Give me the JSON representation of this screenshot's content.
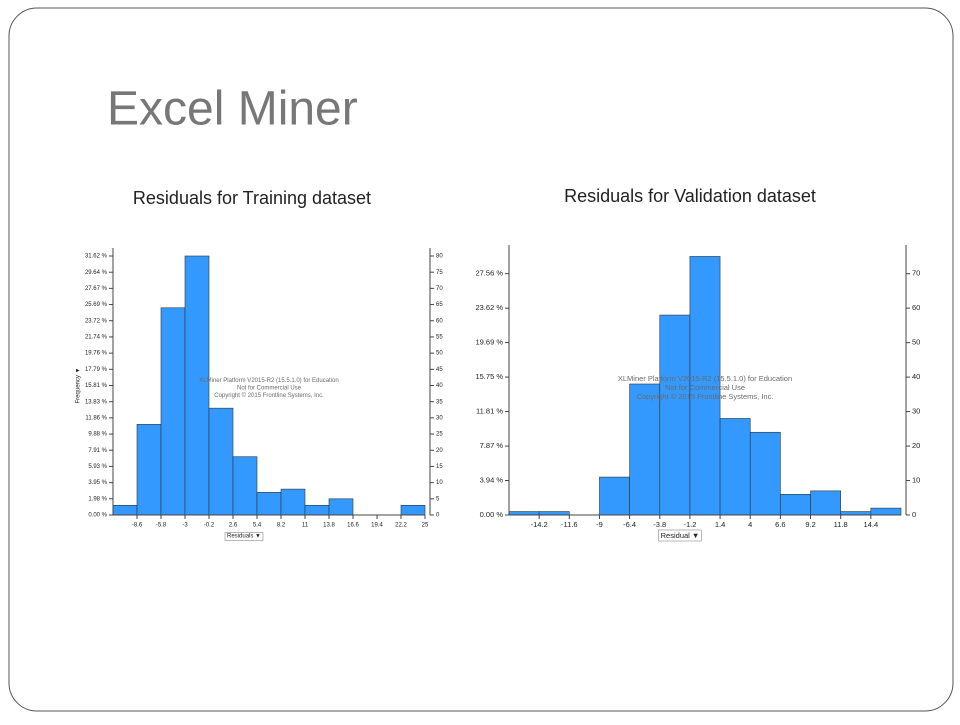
{
  "title": "Excel Miner",
  "chart_data": [
    {
      "type": "histogram",
      "title": "Residuals for Training dataset",
      "color": "#3399ff",
      "x_label": "Residuals ▼",
      "y_label": "Frequency ▼",
      "bins": [
        -11.4,
        -8.6,
        -5.8,
        -3,
        -0.2,
        2.6,
        5.4,
        8.2,
        11,
        13.8,
        16.6,
        19.4,
        22.2,
        25
      ],
      "values": [
        3,
        28,
        64,
        80,
        33,
        18,
        7,
        8,
        3,
        5,
        0,
        0,
        3
      ],
      "xlim": [
        -11.4,
        25
      ],
      "xticks": [
        -8.6,
        -5.8,
        -3,
        -0.2,
        2.6,
        5.4,
        8.2,
        11,
        13.8,
        16.6,
        19.4,
        22.2,
        25
      ],
      "ylim": [
        0,
        80
      ],
      "yticks": [
        0,
        5,
        10,
        15,
        20,
        25,
        30,
        35,
        40,
        45,
        50,
        55,
        60,
        65,
        70,
        75,
        80
      ],
      "y2lim": [
        0,
        31.62
      ],
      "y2ticks": [
        {
          "value": 0,
          "label": "0.00 %"
        },
        {
          "value": 1.98,
          "label": "1.98 %"
        },
        {
          "value": 3.95,
          "label": "3.95 %"
        },
        {
          "value": 5.93,
          "label": "5.93 %"
        },
        {
          "value": 7.91,
          "label": "7.91 %"
        },
        {
          "value": 9.88,
          "label": "9.88 %"
        },
        {
          "value": 11.86,
          "label": "11.86 %"
        },
        {
          "value": 13.83,
          "label": "13.83 %"
        },
        {
          "value": 15.81,
          "label": "15.81 %"
        },
        {
          "value": 17.79,
          "label": "17.79 %"
        },
        {
          "value": 19.76,
          "label": "19.76 %"
        },
        {
          "value": 21.74,
          "label": "21.74 %"
        },
        {
          "value": 23.72,
          "label": "23.72 %"
        },
        {
          "value": 25.69,
          "label": "25.69 %"
        },
        {
          "value": 27.67,
          "label": "27.67 %"
        },
        {
          "value": 29.64,
          "label": "29.64 %"
        },
        {
          "value": 31.62,
          "label": "31.62 %"
        }
      ],
      "annotations": [
        "XLMiner Platform V2015-R2 (15.5.1.0) for Education",
        "Not for Commercial Use",
        "Copyright © 2015 Frontline Systems, Inc."
      ]
    },
    {
      "type": "histogram",
      "title": "Residuals for Validation dataset",
      "color": "#3399ff",
      "x_label": "Residual ▼",
      "bins": [
        -16.8,
        -14.2,
        -11.6,
        -9,
        -6.4,
        -3.8,
        -1.2,
        1.4,
        4,
        6.6,
        9.2,
        11.8,
        14.4,
        17
      ],
      "values": [
        1,
        1,
        0,
        11,
        38,
        58,
        75,
        28,
        24,
        6,
        7,
        1,
        2
      ],
      "xlim": [
        -16.8,
        17
      ],
      "xticks": [
        -14.2,
        -11.6,
        -9,
        -6.4,
        -3.8,
        -1.2,
        1.4,
        4,
        6.6,
        9.2,
        11.8,
        14.4
      ],
      "ylim": [
        0,
        76
      ],
      "yticks": [
        0,
        10,
        20,
        30,
        40,
        50,
        60,
        70
      ],
      "y2lim": [
        0,
        29.92
      ],
      "y2ticks": [
        {
          "value": 0,
          "label": "0.00 %"
        },
        {
          "value": 3.94,
          "label": "3.94 %"
        },
        {
          "value": 7.87,
          "label": "7.87 %"
        },
        {
          "value": 11.81,
          "label": "11.81 %"
        },
        {
          "value": 15.75,
          "label": "15.75 %"
        },
        {
          "value": 19.69,
          "label": "19.69 %"
        },
        {
          "value": 23.62,
          "label": "23.62 %"
        },
        {
          "value": 27.56,
          "label": "27.56 %"
        }
      ],
      "annotations": [
        "XLMiner Platform V2015-R2 (15.5.1.0) for Education",
        "Not for Commercial Use",
        "Copyright © 2015 Frontline Systems, Inc."
      ]
    }
  ]
}
